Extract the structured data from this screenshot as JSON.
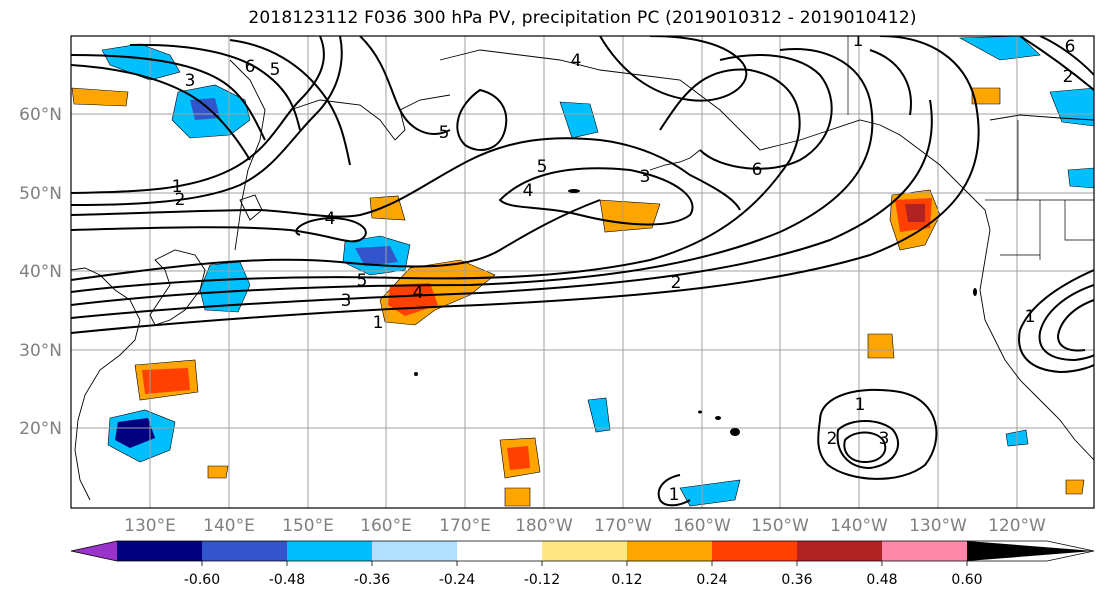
{
  "title": "2018123112 F036 300 hPa PV, precipitation PC (2019010312 - 2019010412)",
  "longitude_ticks": [
    "130°E",
    "140°E",
    "150°E",
    "160°E",
    "170°E",
    "180°W",
    "170°W",
    "160°W",
    "150°W",
    "140°W",
    "130°W",
    "120°W"
  ],
  "latitude_ticks": [
    "60°N",
    "50°N",
    "40°N",
    "30°N",
    "20°N"
  ],
  "colorbar": {
    "colors": [
      "#9933cc",
      "#000080",
      "#3355cc",
      "#00bfff",
      "#b0e0ff",
      "#ffffff",
      "#ffe680",
      "#ffa500",
      "#ff4000",
      "#b22222",
      "#ff88aa"
    ],
    "labels": [
      "-0.60",
      "-0.48",
      "-0.36",
      "-0.24",
      "-0.12",
      "0.12",
      "0.24",
      "0.36",
      "0.48",
      "0.60"
    ]
  },
  "contour_labels": [
    "1",
    "2",
    "3",
    "4",
    "5",
    "6",
    "1",
    "2",
    "3",
    "4",
    "5",
    "6",
    "4",
    "5",
    "3",
    "4",
    "1",
    "2",
    "3",
    "1",
    "1",
    "1",
    "2",
    "5",
    "6"
  ]
}
